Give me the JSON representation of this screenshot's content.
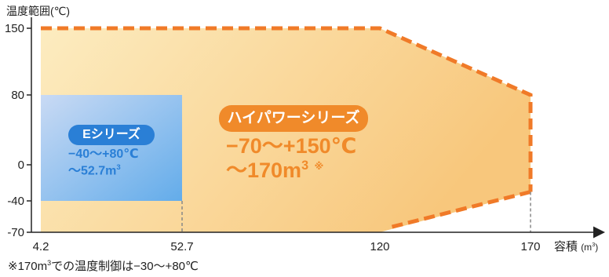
{
  "chart_data": {
    "type": "area",
    "ylabel": "温度範囲(℃)",
    "xlabel": "容積",
    "xlabel_unit": "(m",
    "xlabel_unit_sup": "3",
    "xlabel_unit_close": ")",
    "x_ticks": [
      "4.2",
      "52.7",
      "120",
      "170"
    ],
    "x_tick_values": [
      4.2,
      52.7,
      120,
      170
    ],
    "y_ticks": [
      "150",
      "80",
      "0",
      "-40",
      "-70"
    ],
    "y_tick_values": [
      150,
      80,
      0,
      -40,
      -70
    ],
    "y_scale": "piecewise",
    "grid": false,
    "regions": [
      {
        "name": "ハイパワーシリーズ",
        "temp_label": "−70～+150℃",
        "volume_label": "～170m",
        "volume_sup": "3",
        "mark": "※",
        "color_start": "#fcecc0",
        "color_end": "#f8c77c",
        "border_color": "#f07a28",
        "badge_color": "#f08a2a",
        "text_color": "#f08a2a",
        "polygon": [
          [
            4.2,
            150
          ],
          [
            120,
            150
          ],
          [
            170,
            80
          ],
          [
            170,
            -30
          ],
          [
            120,
            -70
          ],
          [
            4.2,
            -70
          ]
        ]
      },
      {
        "name": "Eシリーズ",
        "temp_label": "−40～+80℃",
        "volume_label": "～52.7m",
        "volume_sup": "3",
        "color_start": "#c9daf4",
        "color_end": "#63acea",
        "badge_color": "#2a7fd6",
        "text_color": "#2a7fd6",
        "rect": {
          "x": [
            4.2,
            52.7
          ],
          "y": [
            -40,
            80
          ]
        }
      }
    ]
  },
  "footnote": {
    "prefix": "※170m",
    "sup": "3",
    "suffix": "での温度制御は−30～+80℃"
  },
  "colors": {
    "axis": "#222222",
    "guide": "#888888"
  }
}
